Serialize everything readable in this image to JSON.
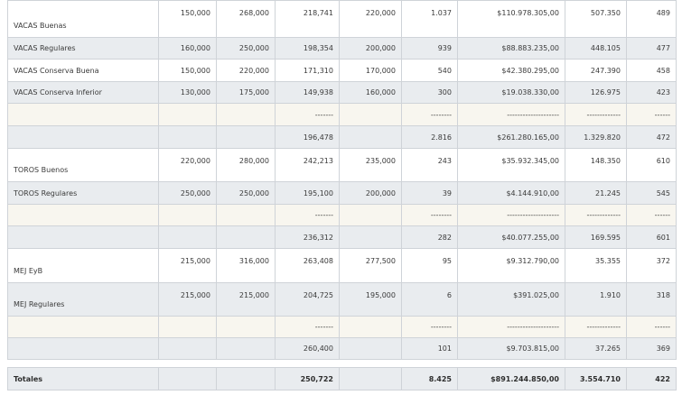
{
  "rows": [
    {
      "label": "VACAS Buenas",
      "c1": "150,000",
      "c2": "268,000",
      "c3": "218,741",
      "c4": "220,000",
      "c5": "1.037",
      "c6": "$110.978.305,00",
      "c7": "507.350",
      "c8": "489"
    },
    {
      "label": "VACAS Regulares",
      "c1": "160,000",
      "c2": "250,000",
      "c3": "198,354",
      "c4": "200,000",
      "c5": "939",
      "c6": "$88.883.235,00",
      "c7": "448.105",
      "c8": "477"
    },
    {
      "label": "VACAS Conserva Buena",
      "c1": "150,000",
      "c2": "220,000",
      "c3": "171,310",
      "c4": "170,000",
      "c5": "540",
      "c6": "$42.380.295,00",
      "c7": "247.390",
      "c8": "458"
    },
    {
      "label": "VACAS Conserva Inferior",
      "c1": "130,000",
      "c2": "175,000",
      "c3": "149,938",
      "c4": "160,000",
      "c5": "300",
      "c6": "$19.038.330,00",
      "c7": "126.975",
      "c8": "423"
    },
    {
      "label": "",
      "c1": "",
      "c2": "",
      "c3": "-------",
      "c4": "",
      "c5": "--------",
      "c6": "--------------------",
      "c7": "-------------",
      "c8": "------"
    },
    {
      "label": "",
      "c1": "",
      "c2": "",
      "c3": "196,478",
      "c4": "",
      "c5": "2.816",
      "c6": "$261.280.165,00",
      "c7": "1.329.820",
      "c8": "472"
    },
    {
      "label": "TOROS Buenos",
      "c1": "220,000",
      "c2": "280,000",
      "c3": "242,213",
      "c4": "235,000",
      "c5": "243",
      "c6": "$35.932.345,00",
      "c7": "148.350",
      "c8": "610"
    },
    {
      "label": "TOROS Regulares",
      "c1": "250,000",
      "c2": "250,000",
      "c3": "195,100",
      "c4": "200,000",
      "c5": "39",
      "c6": "$4.144.910,00",
      "c7": "21.245",
      "c8": "545"
    },
    {
      "label": "",
      "c1": "",
      "c2": "",
      "c3": "-------",
      "c4": "",
      "c5": "--------",
      "c6": "--------------------",
      "c7": "-------------",
      "c8": "------"
    },
    {
      "label": "",
      "c1": "",
      "c2": "",
      "c3": "236,312",
      "c4": "",
      "c5": "282",
      "c6": "$40.077.255,00",
      "c7": "169.595",
      "c8": "601"
    },
    {
      "label": "MEJ EyB",
      "c1": "215,000",
      "c2": "316,000",
      "c3": "263,408",
      "c4": "277,500",
      "c5": "95",
      "c6": "$9.312.790,00",
      "c7": "35.355",
      "c8": "372"
    },
    {
      "label": "MEJ Regulares",
      "c1": "215,000",
      "c2": "215,000",
      "c3": "204,725",
      "c4": "195,000",
      "c5": "6",
      "c6": "$391.025,00",
      "c7": "1.910",
      "c8": "318"
    },
    {
      "label": "",
      "c1": "",
      "c2": "",
      "c3": "-------",
      "c4": "",
      "c5": "--------",
      "c6": "--------------------",
      "c7": "-------------",
      "c8": "------"
    },
    {
      "label": "",
      "c1": "",
      "c2": "",
      "c3": "260,400",
      "c4": "",
      "c5": "101",
      "c6": "$9.703.815,00",
      "c7": "37.265",
      "c8": "369"
    }
  ],
  "totals": {
    "label": "Totales",
    "c1": "",
    "c2": "",
    "c3": "250,722",
    "c4": "",
    "c5": "8.425",
    "c6": "$891.244.850,00",
    "c7": "3.554.710",
    "c8": "422"
  }
}
